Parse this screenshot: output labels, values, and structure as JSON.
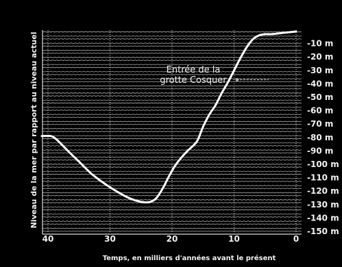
{
  "chart_data": {
    "type": "line",
    "xlabel": "Temps, en milliers d'années avant le présent",
    "ylabel": "Niveau de la mer par rapport au niveau actuel",
    "xlim": [
      40,
      0
    ],
    "ylim": [
      -150,
      0
    ],
    "x_ticks": [
      "40",
      "30",
      "20",
      "10",
      "0"
    ],
    "y_ticks": [
      "-10 m",
      "-20 m",
      "-30 m",
      "-40 m",
      "-50 m",
      "-60 m",
      "-70 m",
      "-80 m",
      "-90 m",
      "-100 m",
      "-110 m",
      "-120 m",
      "-130 m",
      "-140 m",
      "-150 m"
    ],
    "annotation": {
      "lines": [
        "Entrée de la",
        "grotte Cosquer"
      ],
      "depth_m": -37
    },
    "colors": {
      "background": "#000000",
      "line": "#ffffff",
      "grid": "#cfcfcf",
      "text": "#f2f2f2"
    },
    "grid": "wavy-horizontal",
    "series": [
      {
        "x": [
          41,
          39.5,
          38.5,
          37,
          35,
          33,
          31,
          29,
          27,
          25,
          23.5,
          22.5,
          21.5,
          20.5,
          19.5,
          18.5,
          17.5,
          16,
          15,
          14,
          13,
          12,
          11,
          10,
          9,
          8,
          7,
          6,
          5,
          4,
          2,
          0
        ],
        "y": [
          -79,
          -79,
          -82,
          -89,
          -98,
          -107,
          -114,
          -120,
          -125,
          -128,
          -128,
          -125,
          -118,
          -109,
          -101,
          -95,
          -90,
          -83,
          -72,
          -63,
          -56,
          -47,
          -39,
          -30,
          -21,
          -13,
          -7,
          -4,
          -3,
          -3,
          -2,
          -1
        ]
      }
    ]
  }
}
